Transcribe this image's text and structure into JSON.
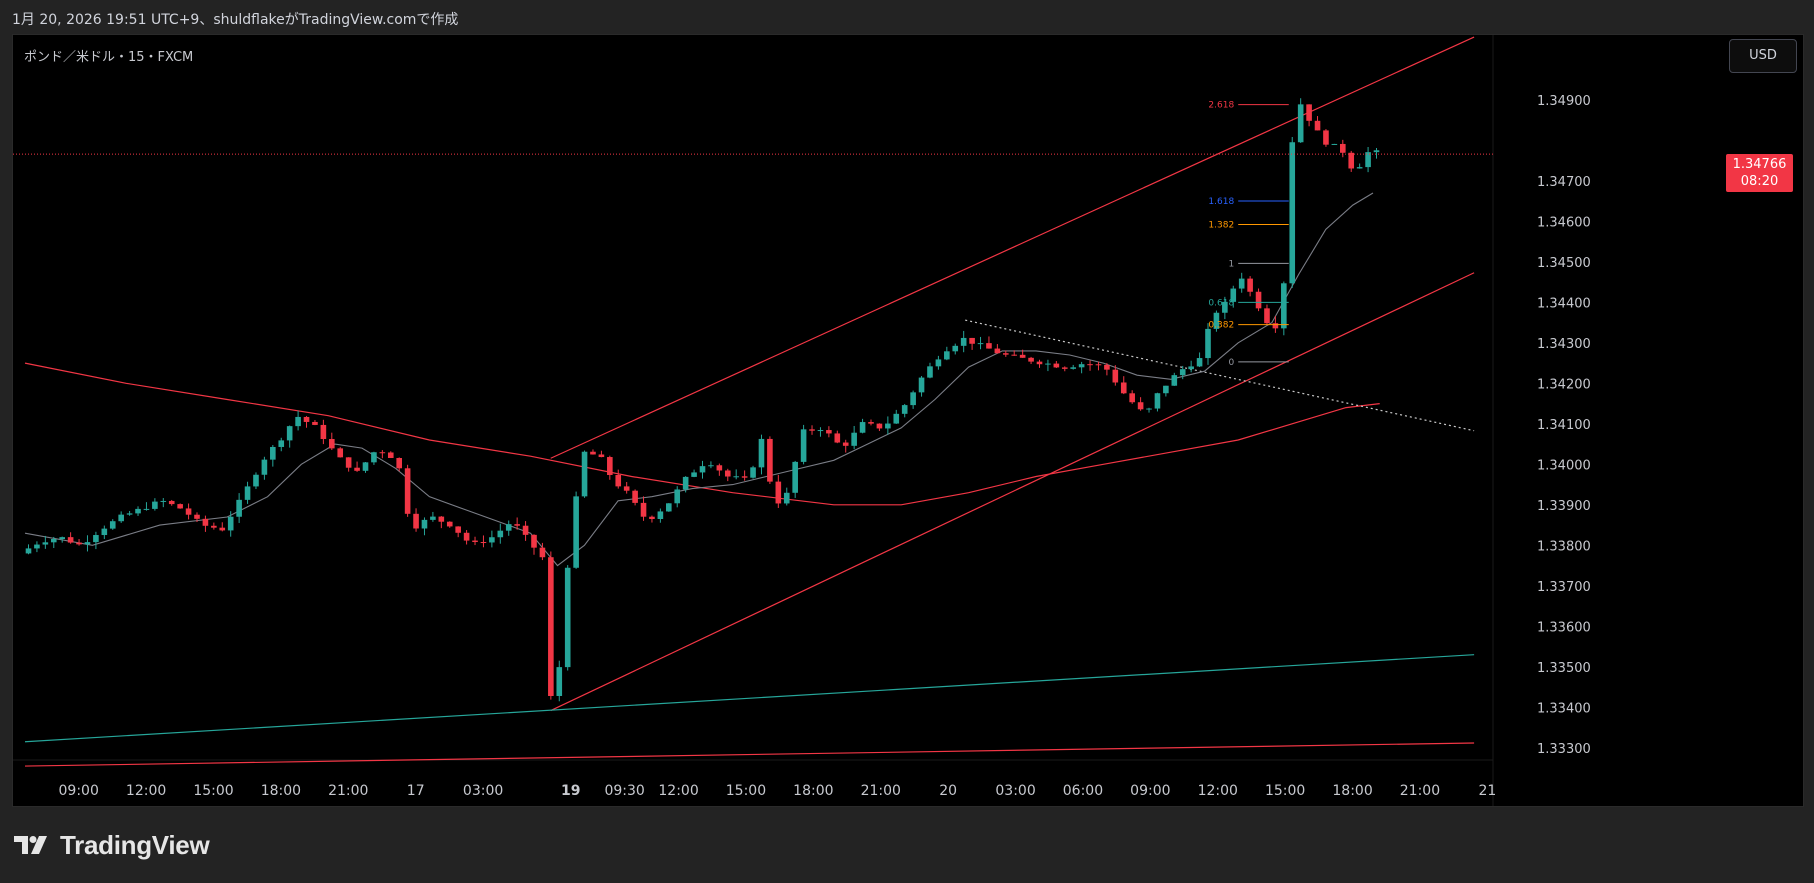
{
  "header": {
    "caption": "1月 20, 2026 19:51 UTC+9、shuldflakeがTradingView.comで作成"
  },
  "symbol": {
    "label": "ポンド／米ドル・15・FXCM"
  },
  "controls": {
    "currency": "USD"
  },
  "current_price": {
    "value": "1.34766",
    "countdown": "08:20"
  },
  "footer": {
    "brand": "TradingView"
  },
  "colors": {
    "up": "#26a69a",
    "down": "#f23645",
    "channel": "#f23645",
    "support": "#26a69a",
    "moving_avg": "#7a7d86",
    "background": "#000000"
  },
  "chart_data": {
    "type": "candlestick",
    "symbol": "GBP/USD",
    "interval": "15",
    "ylim": [
      1.3327,
      1.3506
    ],
    "y_ticks": [
      "1.34900",
      "1.34800",
      "1.34700",
      "1.34600",
      "1.34500",
      "1.34400",
      "1.34300",
      "1.34200",
      "1.34100",
      "1.34000",
      "1.33900",
      "1.33800",
      "1.33700",
      "1.33600",
      "1.33500",
      "1.33400",
      "1.33300"
    ],
    "x_labels": [
      {
        "text": "09:00",
        "t": 0.5,
        "bold": false
      },
      {
        "text": "12:00",
        "t": 1.5,
        "bold": false
      },
      {
        "text": "15:00",
        "t": 2.5,
        "bold": false
      },
      {
        "text": "18:00",
        "t": 3.5,
        "bold": false
      },
      {
        "text": "21:00",
        "t": 4.5,
        "bold": false
      },
      {
        "text": "17",
        "t": 5.5,
        "bold": false
      },
      {
        "text": "03:00",
        "t": 6.5,
        "bold": false
      },
      {
        "text": "19",
        "t": 7.8,
        "bold": true
      },
      {
        "text": "09:30",
        "t": 8.6,
        "bold": false
      },
      {
        "text": "12:00",
        "t": 9.4,
        "bold": false
      },
      {
        "text": "15:00",
        "t": 10.4,
        "bold": false
      },
      {
        "text": "18:00",
        "t": 11.4,
        "bold": false
      },
      {
        "text": "21:00",
        "t": 12.4,
        "bold": false
      },
      {
        "text": "20",
        "t": 13.4,
        "bold": false
      },
      {
        "text": "03:00",
        "t": 14.4,
        "bold": false
      },
      {
        "text": "06:00",
        "t": 15.4,
        "bold": false
      },
      {
        "text": "09:00",
        "t": 16.4,
        "bold": false
      },
      {
        "text": "12:00",
        "t": 17.4,
        "bold": false
      },
      {
        "text": "15:00",
        "t": 18.4,
        "bold": false
      },
      {
        "text": "18:00",
        "t": 19.4,
        "bold": false
      },
      {
        "text": "21:00",
        "t": 20.4,
        "bold": false
      },
      {
        "text": "21",
        "t": 21.4,
        "bold": false
      }
    ],
    "price_path": [
      [
        0.0,
        1.3378
      ],
      [
        0.3,
        1.3381
      ],
      [
        0.6,
        1.3382
      ],
      [
        0.9,
        1.338
      ],
      [
        1.2,
        1.3384
      ],
      [
        1.5,
        1.3387
      ],
      [
        1.8,
        1.3389
      ],
      [
        2.1,
        1.3391
      ],
      [
        2.4,
        1.3389
      ],
      [
        2.7,
        1.3385
      ],
      [
        3.0,
        1.3384
      ],
      [
        3.3,
        1.3392
      ],
      [
        3.6,
        1.3401
      ],
      [
        3.9,
        1.3407
      ],
      [
        4.1,
        1.3412
      ],
      [
        4.4,
        1.3409
      ],
      [
        4.7,
        1.3402
      ],
      [
        5.0,
        1.3398
      ],
      [
        5.3,
        1.3404
      ],
      [
        5.6,
        1.3401
      ],
      [
        5.8,
        1.3384
      ],
      [
        6.1,
        1.3387
      ],
      [
        6.4,
        1.3385
      ],
      [
        6.7,
        1.338
      ],
      [
        7.0,
        1.3382
      ],
      [
        7.3,
        1.3386
      ],
      [
        7.6,
        1.338
      ],
      [
        7.75,
        1.3377
      ],
      [
        7.85,
        1.3341
      ],
      [
        8.0,
        1.335
      ],
      [
        8.15,
        1.338
      ],
      [
        8.35,
        1.3403
      ],
      [
        8.6,
        1.3402
      ],
      [
        8.8,
        1.3396
      ],
      [
        9.0,
        1.3393
      ],
      [
        9.3,
        1.3386
      ],
      [
        9.6,
        1.339
      ],
      [
        9.9,
        1.3397
      ],
      [
        10.2,
        1.3401
      ],
      [
        10.5,
        1.3397
      ],
      [
        10.8,
        1.3396
      ],
      [
        11.0,
        1.3406
      ],
      [
        11.2,
        1.339
      ],
      [
        11.4,
        1.3393
      ],
      [
        11.6,
        1.3408
      ],
      [
        11.9,
        1.3409
      ],
      [
        12.2,
        1.3404
      ],
      [
        12.5,
        1.341
      ],
      [
        12.8,
        1.3409
      ],
      [
        13.1,
        1.3414
      ],
      [
        13.4,
        1.3422
      ],
      [
        13.7,
        1.3428
      ],
      [
        14.0,
        1.3431
      ],
      [
        14.3,
        1.3429
      ],
      [
        14.6,
        1.3427
      ],
      [
        14.9,
        1.3426
      ],
      [
        15.2,
        1.3425
      ],
      [
        15.5,
        1.3424
      ],
      [
        15.8,
        1.3425
      ],
      [
        16.1,
        1.3424
      ],
      [
        16.4,
        1.3417
      ],
      [
        16.7,
        1.3412
      ],
      [
        16.9,
        1.3418
      ],
      [
        17.2,
        1.3423
      ],
      [
        17.5,
        1.3426
      ],
      [
        17.7,
        1.3437
      ],
      [
        17.9,
        1.344
      ],
      [
        18.1,
        1.3447
      ],
      [
        18.3,
        1.3441
      ],
      [
        18.45,
        1.3437
      ],
      [
        18.6,
        1.3432
      ],
      [
        18.75,
        1.3445
      ],
      [
        18.85,
        1.3478
      ],
      [
        19.0,
        1.3489
      ],
      [
        19.2,
        1.3483
      ],
      [
        19.4,
        1.3479
      ],
      [
        19.6,
        1.3478
      ],
      [
        19.8,
        1.3472
      ],
      [
        20.0,
        1.3477
      ]
    ],
    "moving_average": [
      [
        0.0,
        1.3383
      ],
      [
        1.0,
        1.338
      ],
      [
        2.0,
        1.3385
      ],
      [
        3.0,
        1.3387
      ],
      [
        3.6,
        1.3392
      ],
      [
        4.1,
        1.34
      ],
      [
        4.6,
        1.3405
      ],
      [
        5.0,
        1.3404
      ],
      [
        5.5,
        1.3399
      ],
      [
        6.0,
        1.3392
      ],
      [
        6.5,
        1.3389
      ],
      [
        7.0,
        1.3386
      ],
      [
        7.5,
        1.3383
      ],
      [
        7.9,
        1.3375
      ],
      [
        8.3,
        1.338
      ],
      [
        8.8,
        1.3391
      ],
      [
        9.3,
        1.3392
      ],
      [
        9.9,
        1.3394
      ],
      [
        10.5,
        1.3395
      ],
      [
        11.0,
        1.3397
      ],
      [
        11.5,
        1.3399
      ],
      [
        12.0,
        1.3401
      ],
      [
        12.5,
        1.3405
      ],
      [
        13.0,
        1.3409
      ],
      [
        13.5,
        1.3416
      ],
      [
        14.0,
        1.3424
      ],
      [
        14.5,
        1.3428
      ],
      [
        15.0,
        1.3428
      ],
      [
        15.5,
        1.3427
      ],
      [
        16.0,
        1.3425
      ],
      [
        16.5,
        1.3422
      ],
      [
        17.0,
        1.3421
      ],
      [
        17.5,
        1.3423
      ],
      [
        18.0,
        1.343
      ],
      [
        18.5,
        1.3435
      ],
      [
        18.9,
        1.3447
      ],
      [
        19.3,
        1.3458
      ],
      [
        19.7,
        1.3464
      ],
      [
        20.0,
        1.3467
      ]
    ],
    "long_moving_average": [
      [
        0.0,
        1.3425
      ],
      [
        1.5,
        1.342
      ],
      [
        3.0,
        1.3416
      ],
      [
        4.5,
        1.3412
      ],
      [
        6.0,
        1.3406
      ],
      [
        7.5,
        1.3402
      ],
      [
        9.0,
        1.3397
      ],
      [
        10.5,
        1.3393
      ],
      [
        12.0,
        1.339
      ],
      [
        13.0,
        1.339
      ],
      [
        14.0,
        1.3393
      ],
      [
        15.0,
        1.3397
      ],
      [
        16.0,
        1.34
      ],
      [
        17.0,
        1.3403
      ],
      [
        18.0,
        1.3406
      ],
      [
        18.8,
        1.341
      ],
      [
        19.6,
        1.3414
      ],
      [
        20.1,
        1.3415
      ]
    ],
    "lines": [
      {
        "name": "channel-upper",
        "color": "#f23645",
        "style": "solid",
        "from": [
          7.8,
          1.34015
        ],
        "to": [
          21.5,
          1.35055
        ]
      },
      {
        "name": "channel-lower",
        "color": "#f23645",
        "style": "solid",
        "from": [
          7.8,
          1.33392
        ],
        "to": [
          21.5,
          1.34473
        ]
      },
      {
        "name": "trendline-dotted",
        "color": "#c8c8c8",
        "style": "dotted",
        "from": [
          13.95,
          1.34356
        ],
        "to": [
          21.5,
          1.34083
        ]
      },
      {
        "name": "support-long",
        "color": "#26a69a",
        "style": "solid",
        "from": [
          0.0,
          1.33315
        ],
        "to": [
          21.5,
          1.3353
        ]
      },
      {
        "name": "floor-line",
        "color": "#f23645",
        "style": "solid",
        "from": [
          0.0,
          1.33255
        ],
        "to": [
          21.5,
          1.33312
        ]
      }
    ],
    "current_price_line": 1.34766,
    "fibonacci": [
      {
        "ratio": "2.618",
        "price": 1.34888,
        "color": "#f23645"
      },
      {
        "ratio": "1.618",
        "price": 1.3465,
        "color": "#2962ff"
      },
      {
        "ratio": "1.382",
        "price": 1.34592,
        "color": "#ff9800"
      },
      {
        "ratio": "1",
        "price": 1.34496,
        "color": "#9598a1"
      },
      {
        "ratio": "0.618",
        "price": 1.344,
        "color": "#26a69a"
      },
      {
        "ratio": "0.382",
        "price": 1.34345,
        "color": "#ff9800"
      },
      {
        "ratio": "0",
        "price": 1.34253,
        "color": "#9598a1"
      }
    ],
    "fib_range": [
      18.0,
      18.75
    ]
  }
}
